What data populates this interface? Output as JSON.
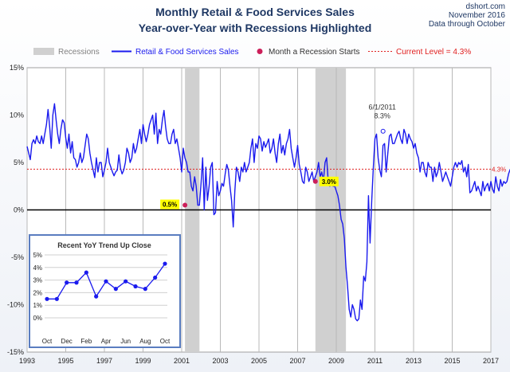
{
  "source": {
    "site": "dshort.com",
    "date": "November 2016",
    "note": "Data through October"
  },
  "colors": {
    "line": "#1a1aee",
    "recession": "#d0d0d0",
    "marker": "#cc1f5a",
    "current": "#e02020",
    "inset_border": "#5a7dc0",
    "label_bg": "#ffff00"
  },
  "chart_data": [
    {
      "type": "line",
      "title": "Monthly Retail & Food Services Sales",
      "subtitle": "Year-over-Year with Recessions Highlighted",
      "legend": [
        "Recessions",
        "Retail & Food Services Sales",
        "Month a Recession Starts",
        "Current Level = 4.3%"
      ],
      "legend_position": "top",
      "x_ticks": [
        "1993",
        "1995",
        "1997",
        "1999",
        "2001",
        "2003",
        "2005",
        "2007",
        "2009",
        "2011",
        "2013",
        "2015",
        "2017"
      ],
      "y_ticks": [
        "15%",
        "10%",
        "5%",
        "0%",
        "-5%",
        "-10%",
        "-15%"
      ],
      "ylim": [
        -15,
        15
      ],
      "xlim": [
        1993.0,
        2017.0
      ],
      "grid": "vertical",
      "recessions": [
        [
          2001.17,
          2001.92
        ],
        [
          2007.92,
          2009.5
        ]
      ],
      "series": [
        {
          "name": "Retail & Food Services Sales",
          "x_start": 1993.0,
          "frequency": "monthly",
          "values": [
            6.7,
            6.0,
            5.3,
            7.0,
            7.4,
            7.0,
            7.8,
            7.2,
            7.0,
            7.8,
            7.0,
            8.0,
            9.0,
            10.6,
            8.8,
            6.5,
            10.0,
            11.2,
            9.5,
            8.0,
            7.0,
            8.5,
            9.5,
            9.2,
            7.6,
            6.5,
            8.0,
            6.0,
            7.2,
            5.5,
            5.3,
            4.5,
            5.0,
            6.0,
            5.0,
            5.5,
            6.8,
            8.0,
            7.5,
            6.0,
            5.0,
            4.2,
            3.4,
            5.5,
            4.0,
            5.0,
            5.0,
            3.5,
            4.2,
            5.0,
            6.5,
            5.0,
            4.5,
            4.0,
            3.6,
            4.0,
            4.2,
            5.8,
            4.4,
            3.8,
            4.2,
            5.0,
            6.5,
            6.0,
            5.0,
            5.5,
            7.0,
            6.0,
            6.5,
            7.5,
            8.5,
            7.0,
            9.0,
            8.0,
            7.2,
            8.0,
            9.0,
            9.5,
            10.0,
            8.0,
            10.2,
            7.0,
            8.5,
            8.0,
            9.5,
            10.5,
            8.8,
            7.5,
            7.0,
            7.0,
            8.0,
            8.5,
            7.0,
            7.5,
            6.5,
            5.5,
            4.0,
            6.5,
            5.5,
            5.0,
            4.0,
            4.0,
            2.5,
            2.0,
            3.5,
            2.5,
            0.5,
            0.5,
            2.8,
            5.5,
            0.0,
            4.5,
            1.0,
            2.5,
            4.5,
            5.0,
            -0.5,
            -0.3,
            3.0,
            1.5,
            2.0,
            2.8,
            2.5,
            3.8,
            4.8,
            4.2,
            2.5,
            1.0,
            -1.8,
            2.0,
            4.5,
            4.0,
            3.0,
            4.5,
            4.0,
            5.0,
            4.0,
            4.5,
            5.0,
            6.5,
            7.5,
            5.0,
            7.0,
            6.5,
            7.8,
            7.5,
            6.2,
            7.2,
            6.6,
            7.0,
            7.5,
            6.0,
            6.5,
            7.5,
            6.0,
            5.0,
            7.0,
            8.0,
            6.0,
            6.8,
            5.8,
            7.0,
            7.5,
            8.5,
            6.5,
            5.5,
            4.5,
            5.5,
            6.8,
            4.8,
            4.0,
            3.0,
            2.8,
            4.5,
            4.0,
            3.0,
            3.5,
            4.0,
            3.0,
            3.5,
            4.0,
            5.0,
            3.5,
            4.0,
            3.0,
            5.0,
            5.5,
            3.0,
            2.5,
            3.0,
            2.5,
            2.5,
            2.0,
            1.5,
            0.5,
            -1.0,
            -1.5,
            -3.0,
            -6.0,
            -8.0,
            -10.5,
            -11.3,
            -10.0,
            -10.5,
            -11.5,
            -11.7,
            -11.5,
            -9.5,
            -10.5,
            -7.0,
            -7.5,
            -5.5,
            1.5,
            -3.5,
            1.0,
            4.5,
            7.5,
            8.0,
            5.5,
            4.2,
            3.5,
            6.8,
            7.0,
            4.0,
            6.0,
            7.8,
            8.0,
            7.0,
            7.0,
            7.5,
            8.0,
            8.3,
            7.5,
            7.0,
            8.5,
            8.0,
            7.0,
            8.0,
            7.5,
            7.2,
            6.5,
            7.0,
            6.0,
            5.5,
            4.0,
            5.0,
            5.0,
            4.0,
            3.5,
            5.0,
            4.5,
            4.5,
            3.0,
            4.5,
            3.5,
            4.0,
            5.0,
            4.0,
            3.0,
            3.5,
            4.0,
            3.5,
            3.0,
            2.5,
            3.5,
            4.5,
            5.0,
            4.5,
            5.0,
            4.8,
            5.2,
            4.0,
            4.5,
            3.5,
            4.8,
            1.8,
            2.0,
            2.5,
            3.0,
            2.0,
            2.5,
            2.0,
            1.5,
            3.0,
            2.0,
            2.5,
            2.8,
            2.0,
            3.0,
            2.2,
            1.8,
            3.5,
            2.5,
            2.0,
            3.2,
            2.5,
            3.0,
            2.8,
            3.0,
            3.8,
            4.3
          ]
        }
      ],
      "annotations": [
        {
          "label": "0.5%",
          "x": 2001.17,
          "y": 0.5
        },
        {
          "label": "3.0%",
          "x": 2007.92,
          "y": 3.0
        },
        {
          "label": "6/1/2011",
          "x": 2011.42,
          "y": 8.3
        },
        {
          "label": "8.3%",
          "x": 2011.42,
          "y": 8.3
        },
        {
          "label": "4.3%",
          "x": 2016.75,
          "y": 4.3
        }
      ],
      "current_level": 4.3
    },
    {
      "type": "line",
      "title": "Recent  YoY Trend Up Close",
      "categories": [
        "Oct",
        "Nov",
        "Dec",
        "Jan",
        "Feb",
        "Mar",
        "Apr",
        "May",
        "Jun",
        "Jul",
        "Aug",
        "Sep",
        "Oct"
      ],
      "x_ticks": [
        "Oct",
        "Dec",
        "Feb",
        "Apr",
        "Jun",
        "Aug",
        "Oct"
      ],
      "y_ticks": [
        "5%",
        "4%",
        "3%",
        "2%",
        "1%",
        "0%"
      ],
      "ylim": [
        0,
        5
      ],
      "series": [
        {
          "values": [
            1.5,
            1.5,
            2.8,
            2.8,
            3.6,
            1.7,
            2.9,
            2.3,
            2.9,
            2.5,
            2.3,
            3.2,
            4.3
          ]
        }
      ]
    }
  ]
}
